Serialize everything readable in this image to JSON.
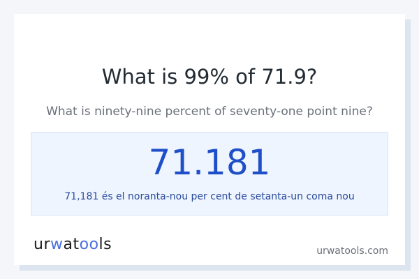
{
  "title": "What is 99% of 71.9?",
  "subtitle": "What is ninety-nine percent of seventy-one point nine?",
  "result": {
    "value": "71.181",
    "words": "71,181 és el noranta-nou per cent de setanta-un coma nou"
  },
  "footer": {
    "logo": "urwatools",
    "logo_parts": [
      "ur",
      "w",
      "at",
      "oo",
      "ls"
    ],
    "domain": "urwatools.com"
  },
  "colors": {
    "accent": "#1f4fc8",
    "logo_accent": "#4a6ee0",
    "result_bg": "#eef5ff"
  }
}
